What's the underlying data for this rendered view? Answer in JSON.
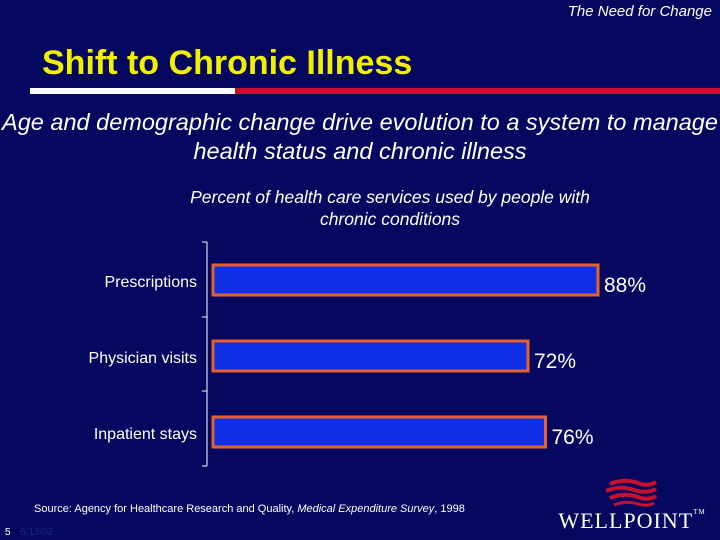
{
  "header": {
    "corner_label": "The Need for Change",
    "title": "Shift to Chronic Illness",
    "subtitle": "Age and demographic change drive evolution to a system to manage health status and chronic illness"
  },
  "colors": {
    "background": "#05085e",
    "title": "#f0f000",
    "bar_fill": "#1030e8",
    "bar_border": "#e8602c",
    "text": "#ffffff",
    "accent_red": "#c8102e"
  },
  "chart_data": {
    "type": "bar",
    "orientation": "horizontal",
    "title": "Percent of health care services used by people with chronic conditions",
    "categories": [
      "Prescriptions",
      "Physician visits",
      "Inpatient stays"
    ],
    "values": [
      88,
      72,
      76
    ],
    "value_labels": [
      "88%",
      "72%",
      "76%"
    ],
    "xlim": [
      0,
      100
    ],
    "xlabel": "",
    "ylabel": "",
    "grid": false
  },
  "footer": {
    "source_prefix": "Source: Agency for Healthcare Research and Quality, ",
    "source_italic": "Medical Expenditure Survey",
    "source_suffix": ", 1998",
    "page_number": "5",
    "date": "6/13/02",
    "logo_text": "WELLPOINT",
    "logo_tm": "TM"
  }
}
